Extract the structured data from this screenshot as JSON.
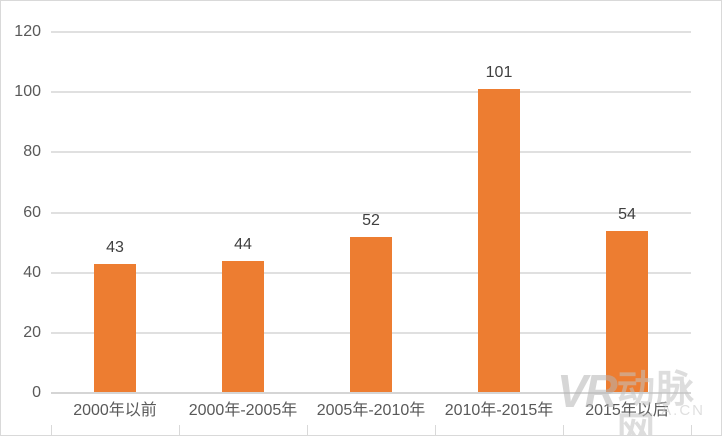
{
  "chart_data": {
    "type": "bar",
    "title": "",
    "categories": [
      "2000年以前",
      "2000年-2005年",
      "2005年-2010年",
      "2010年-2015年",
      "2015年以后"
    ],
    "values": [
      43,
      44,
      52,
      101,
      54
    ],
    "data_labels": [
      "43",
      "44",
      "52",
      "101",
      "54"
    ],
    "y_ticks": [
      0,
      20,
      40,
      60,
      80,
      100,
      120
    ],
    "ylim": [
      0,
      120
    ],
    "xlabel": "",
    "ylabel": "",
    "grid": "horizontal",
    "legend": "none",
    "colors": {
      "bar": "#ed7d31",
      "gridline": "#e0e0e0",
      "axis_line": "#d5d5d5",
      "axis_label": "#595959",
      "data_label": "#404040",
      "chart_border": "#d9d9d9"
    }
  },
  "watermark": {
    "logo": "VR",
    "text": "动脉网",
    "suffix": "A.CN"
  }
}
